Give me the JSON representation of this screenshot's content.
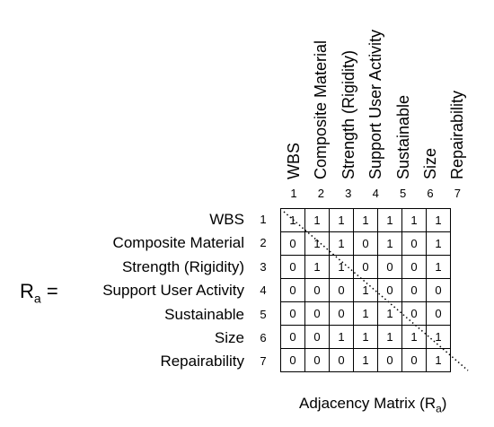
{
  "matrix_symbol": "R",
  "matrix_subscript": "a",
  "equals": "=",
  "labels": [
    "WBS",
    "Composite Material",
    "Strength (Rigidity)",
    "Support User Activity",
    "Sustainable",
    "Size",
    "Repairability"
  ],
  "indices": [
    "1",
    "2",
    "3",
    "4",
    "5",
    "6",
    "7"
  ],
  "matrix": [
    [
      "1",
      "1",
      "1",
      "1",
      "1",
      "1",
      "1"
    ],
    [
      "0",
      "1",
      "1",
      "0",
      "1",
      "0",
      "1"
    ],
    [
      "0",
      "1",
      "1",
      "0",
      "0",
      "0",
      "1"
    ],
    [
      "0",
      "0",
      "0",
      "1",
      "0",
      "0",
      "0"
    ],
    [
      "0",
      "0",
      "0",
      "1",
      "1",
      "0",
      "0"
    ],
    [
      "0",
      "0",
      "1",
      "1",
      "1",
      "1",
      "1"
    ],
    [
      "0",
      "0",
      "0",
      "1",
      "0",
      "0",
      "1"
    ]
  ],
  "caption": {
    "text": "Adjacency Matrix (R",
    "subscript": "a",
    "close": ")"
  }
}
